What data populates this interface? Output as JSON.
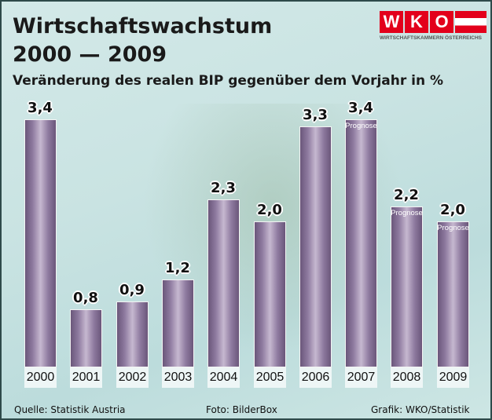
{
  "header": {
    "title_line1": "Wirtschaftswachstum",
    "title_line2": "2000 — 2009",
    "subtitle": "Veränderung des realen BIP gegenüber dem Vorjahr in %"
  },
  "logo": {
    "letters": [
      "W",
      "K",
      "O"
    ],
    "text": "WIRTSCHAFTSKAMMERN ÖSTERREICHS",
    "color": "#e3001b"
  },
  "chart_data": {
    "type": "bar",
    "title": "Wirtschaftswachstum 2000 — 2009",
    "subtitle": "Veränderung des realen BIP gegenüber dem Vorjahr in %",
    "categories": [
      "2000",
      "2001",
      "2002",
      "2003",
      "2004",
      "2005",
      "2006",
      "2007",
      "2008",
      "2009"
    ],
    "values": [
      3.4,
      0.8,
      0.9,
      1.2,
      2.3,
      2.0,
      3.3,
      3.4,
      2.2,
      2.0
    ],
    "labels": [
      "3,4",
      "0,8",
      "0,9",
      "1,2",
      "2,3",
      "2,0",
      "3,3",
      "3,4",
      "2,2",
      "2,0"
    ],
    "forecast": [
      false,
      false,
      false,
      false,
      false,
      false,
      false,
      true,
      true,
      true
    ],
    "forecast_label": "Prognose",
    "ylim": [
      0,
      3.6
    ],
    "grid": false,
    "bar_color": "#8f7ba0"
  },
  "footer": {
    "source": "Quelle: Statistik Austria",
    "photo": "Foto: BilderBox",
    "graphic": "Grafik: WKO/Statistik"
  }
}
